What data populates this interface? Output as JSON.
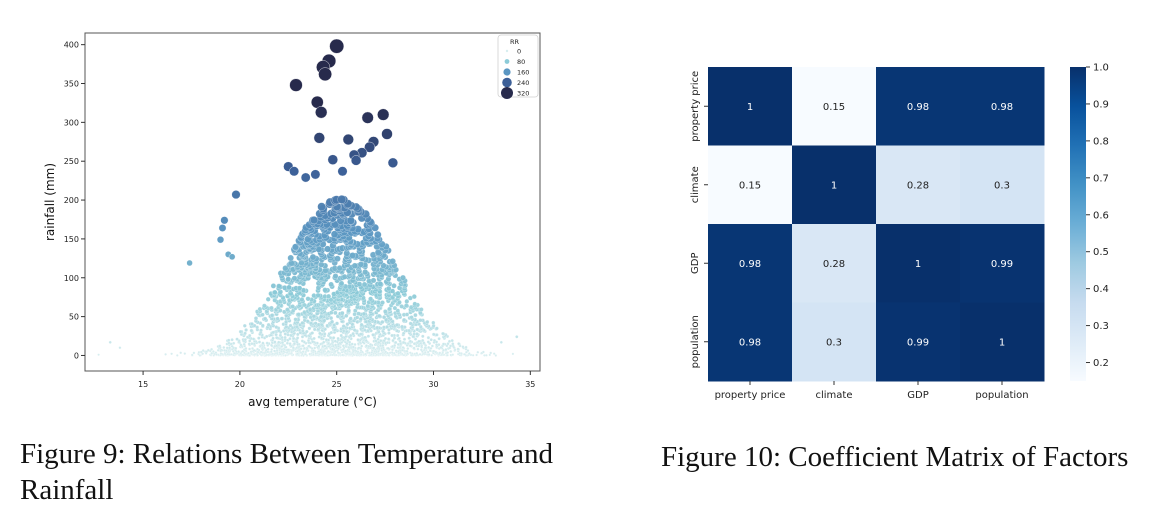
{
  "figures": {
    "fig9_caption": "Figure 9: Relations Between Temperature and Rainfall",
    "fig10_caption": "Figure 10: Coefficient Matrix of Factors"
  },
  "chart_data": [
    {
      "type": "scatter",
      "title": "",
      "xlabel": "avg temperature (°C)",
      "ylabel": "rainfall (mm)",
      "xlim": [
        12,
        35.5
      ],
      "ylim": [
        -20,
        415
      ],
      "xticks": [
        15,
        20,
        25,
        30,
        35
      ],
      "yticks": [
        0,
        50,
        100,
        150,
        200,
        250,
        300,
        350,
        400
      ],
      "grid": false,
      "legend": {
        "title": "RR",
        "position": "top-right",
        "entries": [
          "0",
          "80",
          "160",
          "240",
          "320"
        ]
      },
      "size_and_color_encode": "RR",
      "colormap": [
        "#d8eef0",
        "#8ccbd8",
        "#5a96c2",
        "#3c5f97",
        "#272a4c"
      ],
      "outliers": [
        {
          "x": 25.0,
          "y": 398
        },
        {
          "x": 24.6,
          "y": 379
        },
        {
          "x": 24.3,
          "y": 371
        },
        {
          "x": 24.4,
          "y": 362
        },
        {
          "x": 22.9,
          "y": 348
        },
        {
          "x": 24.0,
          "y": 326
        },
        {
          "x": 24.2,
          "y": 313
        },
        {
          "x": 26.6,
          "y": 306
        },
        {
          "x": 27.4,
          "y": 310
        },
        {
          "x": 27.6,
          "y": 285
        },
        {
          "x": 24.1,
          "y": 280
        },
        {
          "x": 25.6,
          "y": 278
        },
        {
          "x": 26.9,
          "y": 275
        },
        {
          "x": 26.7,
          "y": 268
        },
        {
          "x": 26.3,
          "y": 261
        },
        {
          "x": 25.9,
          "y": 258
        },
        {
          "x": 26.0,
          "y": 251
        },
        {
          "x": 24.8,
          "y": 252
        },
        {
          "x": 27.9,
          "y": 248
        },
        {
          "x": 22.5,
          "y": 243
        },
        {
          "x": 22.8,
          "y": 237
        },
        {
          "x": 25.3,
          "y": 237
        },
        {
          "x": 23.9,
          "y": 233
        },
        {
          "x": 23.4,
          "y": 229
        },
        {
          "x": 19.8,
          "y": 207
        },
        {
          "x": 19.2,
          "y": 174
        },
        {
          "x": 19.1,
          "y": 164
        },
        {
          "x": 19.0,
          "y": 149
        },
        {
          "x": 17.4,
          "y": 119
        },
        {
          "x": 19.4,
          "y": 130
        },
        {
          "x": 19.6,
          "y": 127
        },
        {
          "x": 13.3,
          "y": 17
        },
        {
          "x": 13.8,
          "y": 10
        },
        {
          "x": 12.7,
          "y": 1
        },
        {
          "x": 34.3,
          "y": 24
        },
        {
          "x": 33.5,
          "y": 17
        },
        {
          "x": 34.1,
          "y": 2
        }
      ]
    },
    {
      "type": "heatmap",
      "title": "",
      "rows": [
        "property price",
        "climate",
        "GDP",
        "population"
      ],
      "cols": [
        "property price",
        "climate",
        "GDP",
        "population"
      ],
      "values": [
        [
          1,
          0.15,
          0.98,
          0.98
        ],
        [
          0.15,
          1,
          0.28,
          0.3
        ],
        [
          0.98,
          0.28,
          1,
          0.99
        ],
        [
          0.98,
          0.3,
          0.99,
          1
        ]
      ],
      "labels": [
        [
          "1",
          "0.15",
          "0.98",
          "0.98"
        ],
        [
          "0.15",
          "1",
          "0.28",
          "0.3"
        ],
        [
          "0.98",
          "0.28",
          "1",
          "0.99"
        ],
        [
          "0.98",
          "0.3",
          "0.99",
          "1"
        ]
      ],
      "colormap": "Blues",
      "colorbar": {
        "range": [
          0.15,
          1.0
        ],
        "ticks": [
          "0.2",
          "0.3",
          "0.4",
          "0.5",
          "0.6",
          "0.7",
          "0.8",
          "0.9",
          "1.0"
        ],
        "tick_values": [
          0.2,
          0.3,
          0.4,
          0.5,
          0.6,
          0.7,
          0.8,
          0.9,
          1.0
        ]
      }
    }
  ]
}
